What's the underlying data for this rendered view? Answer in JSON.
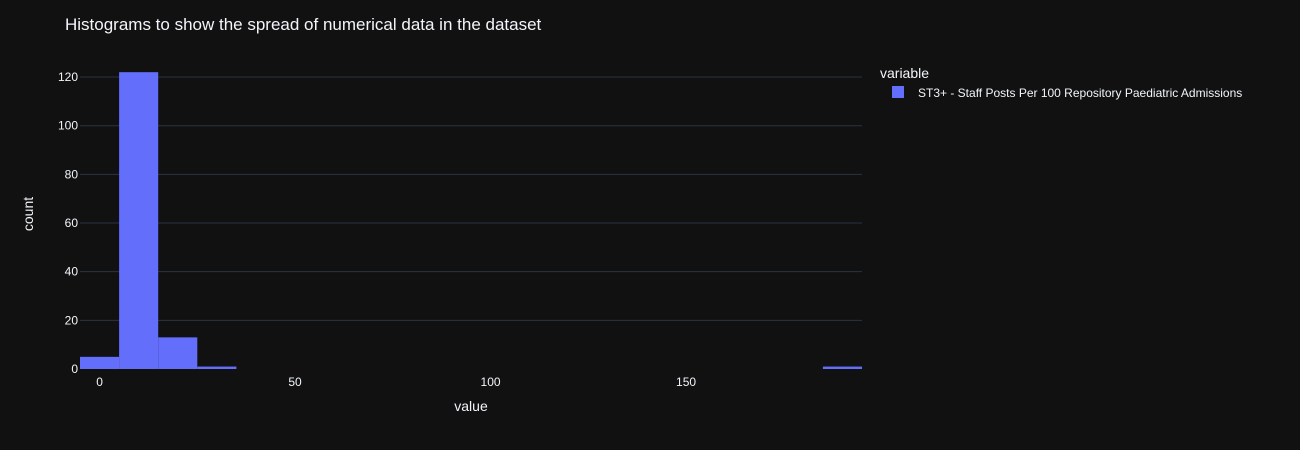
{
  "chart_data": {
    "type": "bar",
    "title": "Histograms to show the spread of numerical data in the dataset",
    "xlabel": "value",
    "ylabel": "count",
    "xlim": [
      -5,
      195
    ],
    "ylim": [
      0,
      127
    ],
    "x_ticks": [
      0,
      50,
      100,
      150
    ],
    "y_ticks": [
      0,
      20,
      40,
      60,
      80,
      100,
      120
    ],
    "grid": true,
    "legend_title": "variable",
    "legend_placement": "top-right",
    "bins": [
      {
        "start": -5,
        "end": 5,
        "count": 5
      },
      {
        "start": 5,
        "end": 15,
        "count": 122
      },
      {
        "start": 15,
        "end": 25,
        "count": 13
      },
      {
        "start": 25,
        "end": 35,
        "count": 1
      },
      {
        "start": 185,
        "end": 195,
        "count": 1
      }
    ],
    "series": [
      {
        "name": "ST3+ - Staff Posts Per 100 Repository Paediatric Admissions",
        "color": "#636efa"
      }
    ]
  }
}
